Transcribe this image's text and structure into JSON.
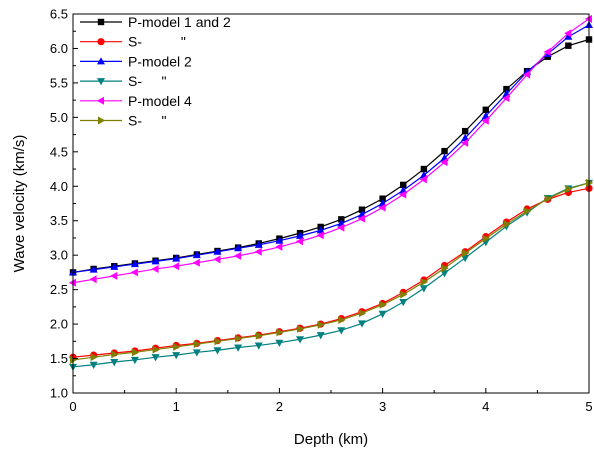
{
  "chart_data": {
    "type": "line",
    "xlabel": "Depth (km)",
    "ylabel": "Wave velocity (km/s)",
    "xlim": [
      0,
      5
    ],
    "ylim": [
      1.0,
      6.5
    ],
    "xticks": [
      "0",
      "1",
      "2",
      "3",
      "4",
      "5"
    ],
    "yticks": [
      "1.0",
      "1.5",
      "2.0",
      "2.5",
      "3.0",
      "3.5",
      "4.0",
      "4.5",
      "5.0",
      "5.5",
      "6.0",
      "6.5"
    ],
    "grid": false,
    "legend_position": "top-left",
    "x": [
      0,
      0.2,
      0.4,
      0.6,
      0.8,
      1.0,
      1.2,
      1.4,
      1.6,
      1.8,
      2.0,
      2.2,
      2.4,
      2.6,
      2.8,
      3.0,
      3.2,
      3.4,
      3.6,
      3.8,
      4.0,
      4.2,
      4.4,
      4.6,
      4.8,
      5.0
    ],
    "series": [
      {
        "name": "P-model 1 and 2",
        "color": "#000000",
        "marker": "square",
        "values": [
          2.75,
          2.8,
          2.84,
          2.88,
          2.92,
          2.96,
          3.01,
          3.06,
          3.11,
          3.17,
          3.24,
          3.32,
          3.41,
          3.52,
          3.66,
          3.82,
          4.02,
          4.25,
          4.51,
          4.8,
          5.11,
          5.41,
          5.67,
          5.88,
          6.04,
          6.13
        ]
      },
      {
        "name": "S-          \"",
        "color": "#ff0000",
        "marker": "circle",
        "values": [
          1.52,
          1.55,
          1.58,
          1.61,
          1.65,
          1.69,
          1.72,
          1.76,
          1.8,
          1.84,
          1.89,
          1.94,
          2.0,
          2.08,
          2.18,
          2.3,
          2.46,
          2.64,
          2.85,
          3.05,
          3.27,
          3.48,
          3.67,
          3.81,
          3.91,
          3.97
        ]
      },
      {
        "name": "P-model 2",
        "color": "#0000ff",
        "marker": "triangle-up",
        "values": [
          2.75,
          2.79,
          2.83,
          2.87,
          2.91,
          2.95,
          3.0,
          3.05,
          3.1,
          3.15,
          3.21,
          3.28,
          3.36,
          3.46,
          3.59,
          3.75,
          3.94,
          4.16,
          4.41,
          4.7,
          5.02,
          5.34,
          5.66,
          5.92,
          6.17,
          6.34
        ]
      },
      {
        "name": "S-     \"",
        "color": "#008080",
        "marker": "triangle-down",
        "values": [
          1.38,
          1.41,
          1.45,
          1.48,
          1.52,
          1.55,
          1.59,
          1.62,
          1.66,
          1.69,
          1.73,
          1.78,
          1.84,
          1.91,
          2.01,
          2.15,
          2.32,
          2.52,
          2.74,
          2.96,
          3.19,
          3.42,
          3.62,
          3.83,
          3.97,
          4.05
        ]
      },
      {
        "name": "P-model 4",
        "color": "#ff00ff",
        "marker": "triangle-left",
        "values": [
          2.6,
          2.65,
          2.7,
          2.75,
          2.8,
          2.84,
          2.89,
          2.94,
          2.99,
          3.05,
          3.12,
          3.2,
          3.29,
          3.4,
          3.53,
          3.69,
          3.88,
          4.1,
          4.35,
          4.63,
          4.95,
          5.28,
          5.62,
          5.95,
          6.22,
          6.43
        ]
      },
      {
        "name": "S-     \"",
        "color": "#808000",
        "marker": "triangle-right",
        "values": [
          1.48,
          1.52,
          1.56,
          1.59,
          1.63,
          1.67,
          1.71,
          1.75,
          1.79,
          1.83,
          1.88,
          1.93,
          1.99,
          2.06,
          2.16,
          2.28,
          2.43,
          2.61,
          2.81,
          3.03,
          3.24,
          3.45,
          3.64,
          3.82,
          3.96,
          4.05
        ]
      }
    ]
  }
}
